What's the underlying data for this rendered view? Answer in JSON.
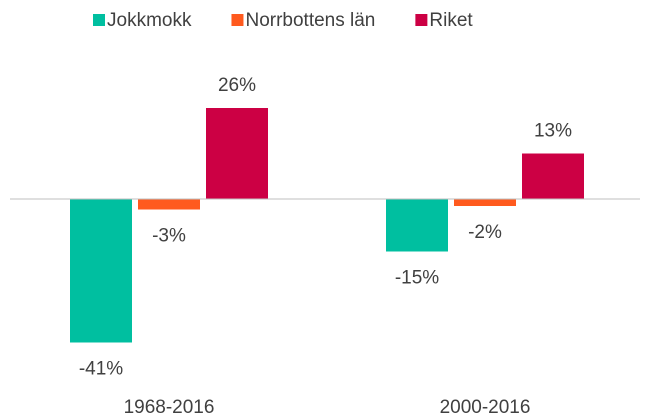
{
  "chart_data": {
    "type": "bar",
    "categories": [
      "1968-2016",
      "2000-2016"
    ],
    "series": [
      {
        "name": "Jokkmokk",
        "color": "#00bfa0",
        "values": [
          -41,
          -15
        ],
        "value_labels": [
          "-41%",
          "-15%"
        ]
      },
      {
        "name": "Norrbottens län",
        "color": "#ff5a1e",
        "values": [
          -3,
          -2
        ],
        "value_labels": [
          "-3%",
          "-2%"
        ]
      },
      {
        "name": "Riket",
        "color": "#cc0044",
        "values": [
          26,
          13
        ],
        "value_labels": [
          "26%",
          "13%"
        ]
      }
    ],
    "ylim": [
      -45,
      30
    ],
    "legend": "top"
  }
}
